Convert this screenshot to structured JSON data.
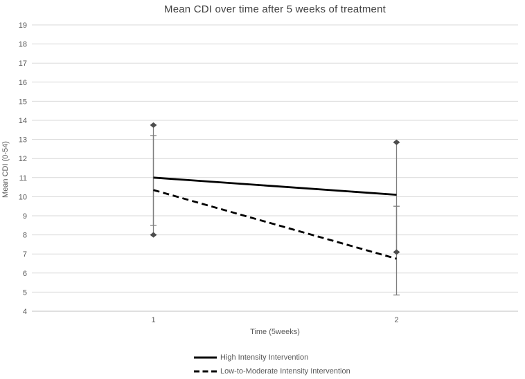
{
  "chart_data": {
    "type": "line",
    "title": "Mean CDI over time after 5 weeks of treatment",
    "xlabel": "Time (5weeks)",
    "ylabel": "Mean CDI (0-54)",
    "categories": [
      "1",
      "2"
    ],
    "ylim": [
      4,
      19
    ],
    "ytick_step": 1,
    "grid": true,
    "legend_position": "bottom-left",
    "series": [
      {
        "name": "High Intensity Intervention",
        "line_style": "solid",
        "values": [
          11.0,
          10.1
        ],
        "error_low": [
          8.0,
          7.1
        ],
        "error_high": [
          13.75,
          12.85
        ],
        "error_end_marker": "diamond"
      },
      {
        "name": "Low-to-Moderate Intensity Intervention",
        "line_style": "dashed",
        "values": [
          10.35,
          6.75
        ],
        "error_low": [
          8.5,
          4.85
        ],
        "error_high": [
          13.2,
          9.5
        ],
        "error_end_marker": "cap"
      }
    ],
    "colors": {
      "series_line": "#000000",
      "error_bar": "#7f7f7f",
      "diamond_marker": "#4d4d4d",
      "gridline": "#d9d9d9",
      "axis_line": "#bfbfbf",
      "tick_text": "#595959",
      "title_text": "#404040",
      "background": "#ffffff"
    }
  }
}
